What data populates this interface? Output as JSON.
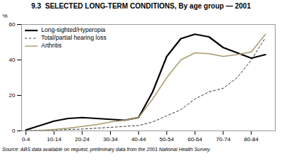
{
  "chart_data": {
    "type": "line",
    "title": "9.3  SELECTED LONG-TERM CONDITIONS, By age group — 2001",
    "ylabel": "%",
    "source": "Source: ABS data available on request, preliminary data from the 2001 National Health Survey.",
    "x": [
      0,
      1,
      2,
      3,
      4,
      5,
      6,
      7,
      8,
      9,
      10,
      11,
      12,
      13,
      14,
      15,
      16,
      17
    ],
    "series": [
      {
        "name": "Long-sighted/Hyperopia",
        "color": "#000000",
        "line_style": "solid",
        "values": [
          0.5,
          3.0,
          5.5,
          7.0,
          7.5,
          7.0,
          6.5,
          6.0,
          7.5,
          22.0,
          42.0,
          52.0,
          54.5,
          53.0,
          47.0,
          44.0,
          41.0,
          43.0
        ]
      },
      {
        "name": "Total/partial hearing loss",
        "color": "#000000",
        "line_style": "dashed",
        "values": [
          0.2,
          0.3,
          0.5,
          0.8,
          1.0,
          1.5,
          2.0,
          2.5,
          3.0,
          5.0,
          8.5,
          12.0,
          18.0,
          22.0,
          24.0,
          30.0,
          40.0,
          52.5
        ]
      },
      {
        "name": "Arthritis",
        "color": "#a89a6a",
        "line_style": "solid",
        "values": [
          0.0,
          0.2,
          0.8,
          1.5,
          2.5,
          3.5,
          5.0,
          6.0,
          7.5,
          18.0,
          30.0,
          40.0,
          44.0,
          43.5,
          42.0,
          43.0,
          44.5,
          54.5
        ]
      }
    ],
    "xlim": [
      -0.3,
      17.7
    ],
    "xticks": [
      {
        "value": 0,
        "label": "0-4"
      },
      {
        "value": 2,
        "label": "10-14"
      },
      {
        "value": 4,
        "label": "20-24"
      },
      {
        "value": 6,
        "label": "30-34"
      },
      {
        "value": 8,
        "label": "40-44"
      },
      {
        "value": 10,
        "label": "50-54"
      },
      {
        "value": 12,
        "label": "60-64"
      },
      {
        "value": 14,
        "label": "70-74"
      },
      {
        "value": 16,
        "label": "80-84"
      }
    ],
    "ylim": [
      0,
      60
    ],
    "yticks": [
      0,
      20,
      40,
      60
    ],
    "legend": "upper left"
  }
}
